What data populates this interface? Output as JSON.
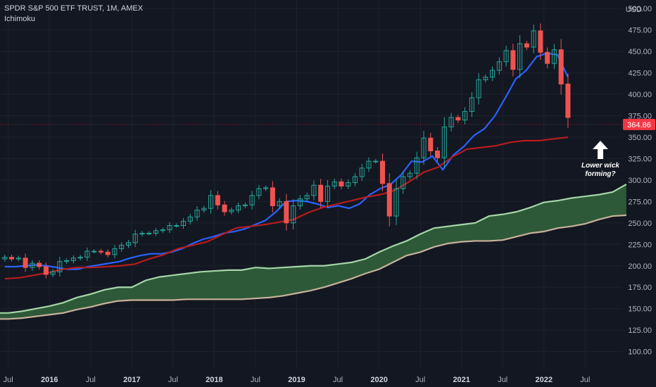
{
  "header": {
    "symbol_line": "SPDR S&P 500 ETF TRUST, 1M, AMEX",
    "indicator": "Ichimoku"
  },
  "currency": "USD",
  "annotation": {
    "line1": "Lower wick",
    "line2": "forming?"
  },
  "colors": {
    "background": "#131722",
    "bull": "#26a69a",
    "bear": "#ef5350",
    "conversion_line": "#2962ff",
    "base_line": "#b71c1c",
    "cloud_fill": "#2f5d3a",
    "span_a": "#a5d6a7",
    "span_b": "#c8b29a",
    "current_price_label": "#f23645"
  },
  "chart_data": {
    "type": "candlestick",
    "ylim": [
      80,
      510
    ],
    "yticks": [
      100,
      125,
      150,
      175,
      200,
      225,
      250,
      275,
      300,
      325,
      350,
      375,
      400,
      425,
      450,
      475,
      500
    ],
    "xlim": [
      2015.4,
      2022.95
    ],
    "xticks": [
      {
        "t": 2015.5,
        "label": "Jul"
      },
      {
        "t": 2016.0,
        "label": "2016"
      },
      {
        "t": 2016.5,
        "label": "Jul"
      },
      {
        "t": 2017.0,
        "label": "2017"
      },
      {
        "t": 2017.5,
        "label": "Jul"
      },
      {
        "t": 2018.0,
        "label": "2018"
      },
      {
        "t": 2018.5,
        "label": "Jul"
      },
      {
        "t": 2019.0,
        "label": "2019"
      },
      {
        "t": 2019.5,
        "label": "Jul"
      },
      {
        "t": 2020.0,
        "label": "2020"
      },
      {
        "t": 2020.5,
        "label": "Jul"
      },
      {
        "t": 2021.0,
        "label": "2021"
      },
      {
        "t": 2021.5,
        "label": "Jul"
      },
      {
        "t": 2022.0,
        "label": "2022"
      },
      {
        "t": 2022.5,
        "label": "Jul"
      }
    ],
    "current_price": 364.86,
    "current_price_label": "364.86",
    "monthly_closes": [
      210,
      208,
      209,
      198,
      203,
      199,
      190,
      193,
      205,
      206,
      209,
      210,
      217,
      217,
      216,
      213,
      220,
      224,
      227,
      237,
      238,
      238,
      241,
      242,
      247,
      247,
      252,
      257,
      265,
      267,
      282,
      271,
      263,
      265,
      270,
      271,
      282,
      290,
      291,
      270,
      275,
      250,
      270,
      278,
      282,
      294,
      275,
      293,
      298,
      293,
      297,
      304,
      314,
      322,
      322,
      296,
      258,
      290,
      304,
      308,
      326,
      349,
      334,
      326,
      362,
      373,
      370,
      380,
      396,
      417,
      420,
      428,
      438,
      451,
      429,
      459,
      455,
      474,
      449,
      436,
      452,
      412,
      373
    ],
    "candle_start": 2015.4583,
    "cloud_start": 2015.3333,
    "cloud_span_a": [
      145,
      145,
      147,
      150,
      153,
      157,
      163,
      167,
      172,
      175,
      175,
      183,
      187,
      189,
      191,
      193,
      194,
      195,
      195,
      198,
      197,
      198,
      199,
      200,
      200,
      202,
      204,
      208,
      216,
      223,
      229,
      237,
      244,
      246,
      248,
      250,
      258,
      260,
      263,
      268,
      274,
      276,
      279,
      281,
      283,
      286,
      295
    ],
    "cloud_span_b": [
      138,
      138,
      139,
      141,
      143,
      145,
      149,
      152,
      156,
      159,
      160,
      160,
      160,
      160,
      161,
      161,
      161,
      161,
      161,
      162,
      163,
      165,
      168,
      171,
      175,
      180,
      185,
      191,
      196,
      204,
      212,
      216,
      222,
      226,
      228,
      229,
      229,
      230,
      234,
      238,
      240,
      244,
      246,
      249,
      254,
      258,
      259
    ],
    "cloud_step_months": 2,
    "conversion_line": [
      199,
      199,
      200,
      201,
      200,
      198,
      196,
      196,
      199,
      201,
      203,
      205,
      209,
      212,
      214,
      214,
      216,
      220,
      226,
      231,
      234,
      238,
      240,
      243,
      248,
      253,
      263,
      275,
      276,
      275,
      272,
      268,
      270,
      267,
      272,
      283,
      290,
      295,
      306,
      322,
      321,
      328,
      312,
      329,
      339,
      352,
      360,
      375,
      396,
      418,
      428,
      444,
      448,
      446,
      420
    ],
    "base_line": [
      185,
      186,
      189,
      192,
      196,
      198,
      198,
      199,
      200,
      202,
      208,
      213,
      220,
      224,
      228,
      236,
      244,
      246,
      248,
      251,
      254,
      262,
      268,
      272,
      276,
      280,
      283,
      288,
      298,
      309,
      315,
      327,
      336,
      338,
      340,
      344,
      346,
      346,
      348,
      350
    ],
    "base_line_step_months": 2
  }
}
